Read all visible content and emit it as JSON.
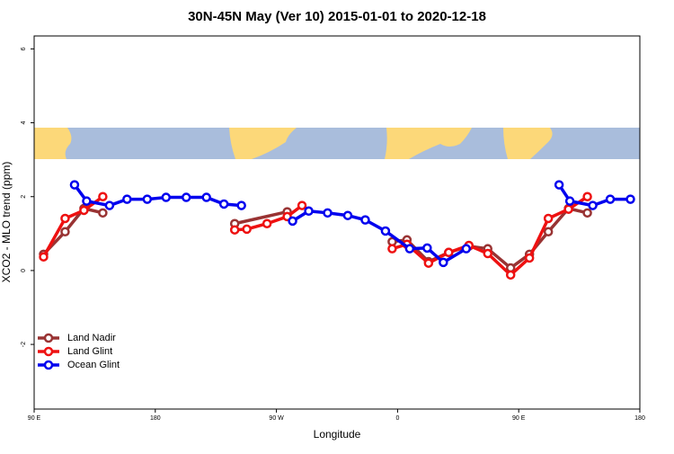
{
  "chart_data": {
    "type": "line",
    "title": "30N-45N May (Ver 10)   2015-01-01 to 2020-12-18",
    "x_label": "Longitude",
    "y_label": "XCO2 - MLO trend (ppm)",
    "xlim": [
      90,
      540
    ],
    "ylim": [
      -3.75,
      6.35
    ],
    "xticks": [
      {
        "value": 90,
        "label": "90 E"
      },
      180,
      {
        "value": 270,
        "label": "90 W"
      },
      {
        "value": 360,
        "label": "0"
      },
      {
        "value": 450,
        "label": "90 E"
      },
      {
        "value": 540,
        "label": "180"
      }
    ],
    "yticks": [
      -2,
      0,
      2,
      4,
      6
    ],
    "legend": "bottomleft",
    "series": [
      {
        "name": "Land Nadir",
        "color": "#993333",
        "x": [
          97,
          113,
          127,
          141,
          null,
          239,
          278,
          null,
          356,
          367,
          383,
          398,
          413,
          427,
          444,
          458,
          472,
          487,
          501
        ],
        "values": [
          0.44,
          1.05,
          1.68,
          1.56,
          null,
          1.27,
          1.59,
          null,
          0.78,
          0.83,
          0.24,
          0.49,
          0.66,
          0.59,
          0.07,
          0.44,
          1.05,
          1.68,
          1.56
        ]
      },
      {
        "name": "Land Glint",
        "color": "#ee1111",
        "x": [
          97,
          113,
          127,
          141,
          null,
          239,
          248,
          263,
          278,
          289,
          null,
          356,
          367,
          383,
          398,
          413,
          427,
          444,
          458,
          472,
          487,
          501
        ],
        "values": [
          0.37,
          1.41,
          1.63,
          2.0,
          null,
          1.1,
          1.12,
          1.27,
          1.46,
          1.76,
          null,
          0.59,
          0.71,
          0.2,
          0.49,
          0.68,
          0.46,
          -0.12,
          0.34,
          1.41,
          1.66,
          2.0
        ]
      },
      {
        "name": "Ocean Glint",
        "color": "#0000ee",
        "x": [
          120,
          129,
          146,
          159,
          174,
          188,
          203,
          218,
          231,
          244,
          null,
          282,
          294,
          308,
          323,
          336,
          351,
          369,
          382,
          394,
          411,
          null,
          480,
          488,
          505,
          518,
          533
        ],
        "values": [
          2.32,
          1.88,
          1.76,
          1.93,
          1.93,
          1.98,
          1.98,
          1.98,
          1.8,
          1.76,
          null,
          1.34,
          1.61,
          1.56,
          1.49,
          1.37,
          1.07,
          0.59,
          0.61,
          0.22,
          0.59,
          null,
          2.32,
          1.88,
          1.76,
          1.93,
          1.93
        ]
      }
    ]
  }
}
